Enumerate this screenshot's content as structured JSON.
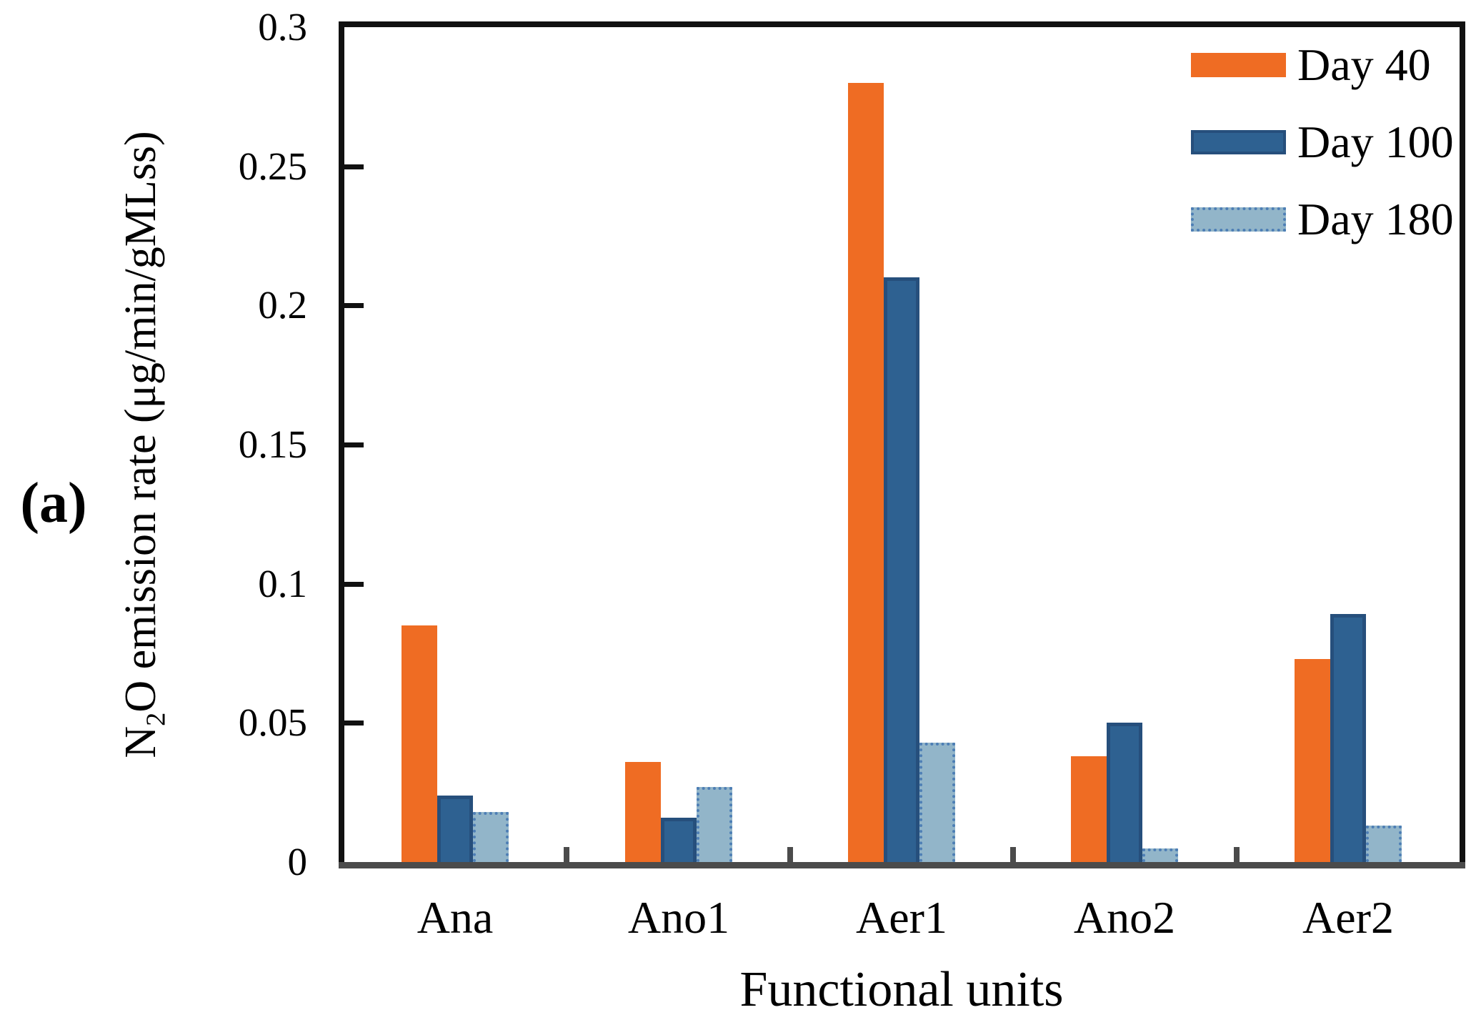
{
  "figure": {
    "panel_label": "(a)",
    "y_axis": {
      "label_prefix": "N",
      "label_sub": "2",
      "label_rest": "O emission rate (μg/min/gMLss)",
      "ticks": [
        "0.3",
        "0.25",
        "0.2",
        "0.15",
        "0.1",
        "0.05",
        "0"
      ]
    },
    "x_axis": {
      "title": "Functional units",
      "categories": [
        "Ana",
        "Ano1",
        "Aer1",
        "Ano2",
        "Aer2"
      ]
    },
    "legend": [
      {
        "label": "Day 40"
      },
      {
        "label": "Day 100"
      },
      {
        "label": "Day 180"
      }
    ]
  },
  "colors": {
    "day40": "#EF6C23",
    "day100_fill": "#2E6191",
    "day100_border": "#264F7C",
    "day180_fill": "#92B5C9",
    "day180_border": "#4D7EB5",
    "axis_frame": "#111111",
    "axis_baseline": "#4B4B4B"
  },
  "chart_data": {
    "type": "bar",
    "title": "",
    "xlabel": "Functional units",
    "ylabel": "N2O emission rate (μg/min/gMLss)",
    "ylim": [
      0,
      0.3
    ],
    "ytick_values": [
      0,
      0.05,
      0.1,
      0.15,
      0.2,
      0.25,
      0.3
    ],
    "grid": false,
    "legend_position": "upper right",
    "categories": [
      "Ana",
      "Ano1",
      "Aer1",
      "Ano2",
      "Aer2"
    ],
    "series": [
      {
        "name": "Day 40",
        "values": [
          0.085,
          0.036,
          0.28,
          0.038,
          0.073
        ]
      },
      {
        "name": "Day 100",
        "values": [
          0.024,
          0.016,
          0.21,
          0.05,
          0.089
        ]
      },
      {
        "name": "Day 180",
        "values": [
          0.018,
          0.027,
          0.043,
          0.005,
          0.013
        ]
      }
    ]
  }
}
